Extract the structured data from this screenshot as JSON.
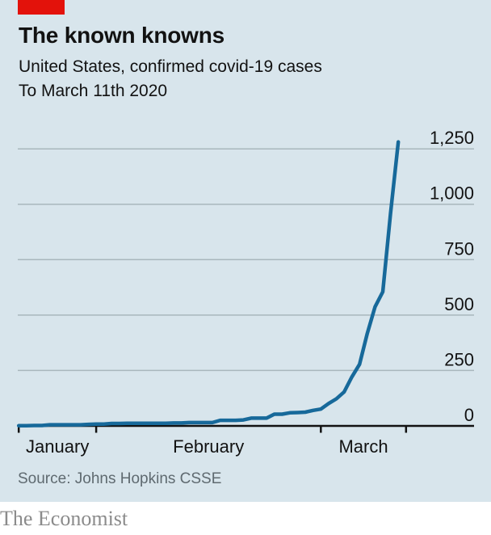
{
  "header": {
    "title": "The known knowns",
    "subtitle": "United States, confirmed covid-19 cases",
    "period": "To March 11th 2020"
  },
  "footer": {
    "source": "Source: Johns Hopkins CSSE",
    "brand": "The Economist"
  },
  "colors": {
    "background": "#d8e5ec",
    "accent_red": "#e3120b",
    "line": "#17699a",
    "grid": "#a9b7bd",
    "axis": "#121212",
    "text": "#121212",
    "source_text": "#5f6a70",
    "brand_text": "#8b8b8b"
  },
  "chart_data": {
    "type": "line",
    "title": "The known knowns",
    "subtitle": "United States, confirmed covid-19 cases",
    "note": "To March 11th 2020",
    "x": [
      "Jan 22",
      "Jan 23",
      "Jan 24",
      "Jan 25",
      "Jan 26",
      "Jan 27",
      "Jan 28",
      "Jan 29",
      "Jan 30",
      "Jan 31",
      "Feb 1",
      "Feb 2",
      "Feb 3",
      "Feb 4",
      "Feb 5",
      "Feb 6",
      "Feb 7",
      "Feb 8",
      "Feb 9",
      "Feb 10",
      "Feb 11",
      "Feb 12",
      "Feb 13",
      "Feb 14",
      "Feb 15",
      "Feb 16",
      "Feb 17",
      "Feb 18",
      "Feb 19",
      "Feb 20",
      "Feb 21",
      "Feb 22",
      "Feb 23",
      "Feb 24",
      "Feb 25",
      "Feb 26",
      "Feb 27",
      "Feb 28",
      "Feb 29",
      "Mar 1",
      "Mar 2",
      "Mar 3",
      "Mar 4",
      "Mar 5",
      "Mar 6",
      "Mar 7",
      "Mar 8",
      "Mar 9",
      "Mar 10",
      "Mar 11"
    ],
    "values": [
      1,
      1,
      2,
      2,
      5,
      5,
      5,
      5,
      5,
      7,
      8,
      8,
      11,
      11,
      12,
      12,
      12,
      12,
      12,
      12,
      13,
      13,
      15,
      15,
      15,
      15,
      25,
      25,
      25,
      27,
      35,
      35,
      35,
      53,
      53,
      59,
      60,
      62,
      70,
      76,
      101,
      122,
      153,
      221,
      278,
      417,
      537,
      605,
      959,
      1281
    ],
    "series_name": "Confirmed cases",
    "yticks": [
      1250,
      1000,
      750,
      500,
      250,
      0
    ],
    "ytick_labels": [
      "1,250",
      "1,000",
      "750",
      "500",
      "250",
      "0"
    ],
    "month_labels": [
      "January",
      "February",
      "March"
    ],
    "month_tick_indices": [
      0,
      10,
      39,
      50
    ],
    "ylim": [
      0,
      1250
    ],
    "grid": true,
    "legend": "none",
    "ylabel_side": "right"
  }
}
